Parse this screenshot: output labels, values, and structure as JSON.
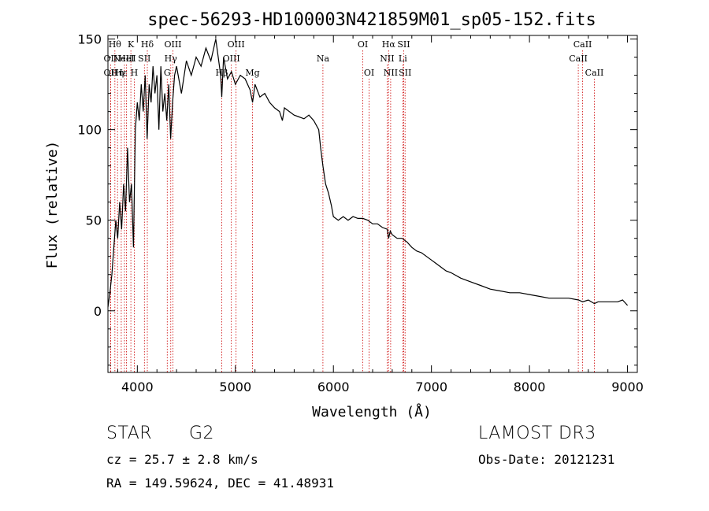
{
  "chart_data": {
    "type": "line",
    "title": "spec-56293-HD100003N421859M01_sp05-152.fits",
    "xlabel": "Wavelength (Å)",
    "ylabel": "Flux (relative)",
    "xlim": [
      3700,
      9100
    ],
    "ylim": [
      -34,
      152
    ],
    "x_ticks": [
      4000,
      5000,
      6000,
      7000,
      8000,
      9000
    ],
    "y_ticks": [
      0,
      50,
      100,
      150
    ],
    "x_tick_labels": [
      "4000",
      "5000",
      "6000",
      "7000",
      "8000",
      "9000"
    ],
    "y_tick_labels": [
      "0",
      "50",
      "100",
      "150"
    ],
    "grid": false,
    "line_color": "#000000",
    "marker_color": "#cc0000",
    "series": [
      {
        "name": "flux",
        "x": [
          3700,
          3720,
          3740,
          3760,
          3780,
          3800,
          3820,
          3840,
          3860,
          3880,
          3900,
          3920,
          3940,
          3960,
          3980,
          4000,
          4020,
          4040,
          4060,
          4080,
          4100,
          4120,
          4140,
          4160,
          4180,
          4200,
          4220,
          4240,
          4260,
          4280,
          4300,
          4320,
          4340,
          4360,
          4380,
          4400,
          4450,
          4500,
          4550,
          4600,
          4650,
          4700,
          4750,
          4800,
          4850,
          4861,
          4880,
          4920,
          4960,
          5000,
          5050,
          5100,
          5150,
          5175,
          5200,
          5250,
          5300,
          5350,
          5400,
          5450,
          5480,
          5500,
          5550,
          5600,
          5650,
          5700,
          5750,
          5800,
          5850,
          5870,
          5893,
          5920,
          5950,
          5980,
          6000,
          6050,
          6100,
          6150,
          6200,
          6250,
          6300,
          6350,
          6400,
          6450,
          6500,
          6550,
          6563,
          6580,
          6600,
          6650,
          6700,
          6750,
          6800,
          6850,
          6900,
          6950,
          7000,
          7050,
          7100,
          7150,
          7200,
          7300,
          7400,
          7500,
          7600,
          7700,
          7800,
          7900,
          8000,
          8100,
          8200,
          8300,
          8400,
          8500,
          8542,
          8600,
          8662,
          8700,
          8800,
          8900,
          8950,
          9000
        ],
        "y": [
          2,
          10,
          20,
          35,
          50,
          40,
          60,
          45,
          70,
          55,
          90,
          60,
          70,
          35,
          100,
          115,
          105,
          125,
          110,
          130,
          95,
          125,
          115,
          135,
          120,
          130,
          100,
          135,
          110,
          120,
          105,
          125,
          95,
          115,
          130,
          135,
          120,
          138,
          130,
          140,
          135,
          145,
          138,
          150,
          130,
          118,
          140,
          128,
          132,
          125,
          130,
          128,
          122,
          115,
          125,
          118,
          120,
          115,
          112,
          110,
          105,
          112,
          110,
          108,
          107,
          106,
          108,
          105,
          100,
          90,
          80,
          70,
          65,
          58,
          52,
          50,
          52,
          50,
          52,
          51,
          51,
          50,
          48,
          48,
          46,
          45,
          40,
          44,
          42,
          40,
          40,
          38,
          35,
          33,
          32,
          30,
          28,
          26,
          24,
          22,
          21,
          18,
          16,
          14,
          12,
          11,
          10,
          10,
          9,
          8,
          7,
          7,
          7,
          6,
          5,
          6,
          4,
          5,
          5,
          5,
          6,
          3
        ]
      }
    ],
    "line_markers": [
      {
        "x": 3771,
        "label": "Hθ",
        "row": 0
      },
      {
        "x": 3727,
        "label": "OII",
        "row": 1
      },
      {
        "x": 3727,
        "label": "OII",
        "row": 2
      },
      {
        "x": 3798,
        "label": "Hη",
        "row": 2
      },
      {
        "x": 3836,
        "label": "Hε",
        "row": 2
      },
      {
        "x": 3869,
        "label": "NeIII",
        "row": 1
      },
      {
        "x": 3889,
        "label": "HeI",
        "row": 1
      },
      {
        "x": 3934,
        "label": "K",
        "row": 0
      },
      {
        "x": 3969,
        "label": "H",
        "row": 2
      },
      {
        "x": 4072,
        "label": "SII",
        "row": 1
      },
      {
        "x": 4102,
        "label": "Hδ",
        "row": 0
      },
      {
        "x": 4305,
        "label": "G",
        "row": 2
      },
      {
        "x": 4341,
        "label": "Hγ",
        "row": 1
      },
      {
        "x": 4363,
        "label": "OIII",
        "row": 0
      },
      {
        "x": 4861,
        "label": "Hβ",
        "row": 2
      },
      {
        "x": 4959,
        "label": "OIII",
        "row": 1
      },
      {
        "x": 5007,
        "label": "OIII",
        "row": 0
      },
      {
        "x": 5175,
        "label": "Mg",
        "row": 2
      },
      {
        "x": 5893,
        "label": "Na",
        "row": 1
      },
      {
        "x": 6300,
        "label": "OI",
        "row": 0
      },
      {
        "x": 6364,
        "label": "OI",
        "row": 2
      },
      {
        "x": 6548,
        "label": "NII",
        "row": 1
      },
      {
        "x": 6563,
        "label": "Hα",
        "row": 0
      },
      {
        "x": 6584,
        "label": "NII",
        "row": 2
      },
      {
        "x": 6708,
        "label": "Li",
        "row": 1
      },
      {
        "x": 6717,
        "label": "SII",
        "row": 0
      },
      {
        "x": 6731,
        "label": "SII",
        "row": 2
      },
      {
        "x": 8498,
        "label": "CaII",
        "row": 1
      },
      {
        "x": 8542,
        "label": "CaII",
        "row": 0
      },
      {
        "x": 8662,
        "label": "CaII",
        "row": 2
      }
    ]
  },
  "info": {
    "object_class": "STAR",
    "subclass": "G2",
    "survey": "LAMOST DR3",
    "redshift": "cz = 25.7 ± 2.8 km/s",
    "obs_date": "Obs-Date: 20121231",
    "coords": "RA = 149.59624, DEC =  41.48931"
  }
}
